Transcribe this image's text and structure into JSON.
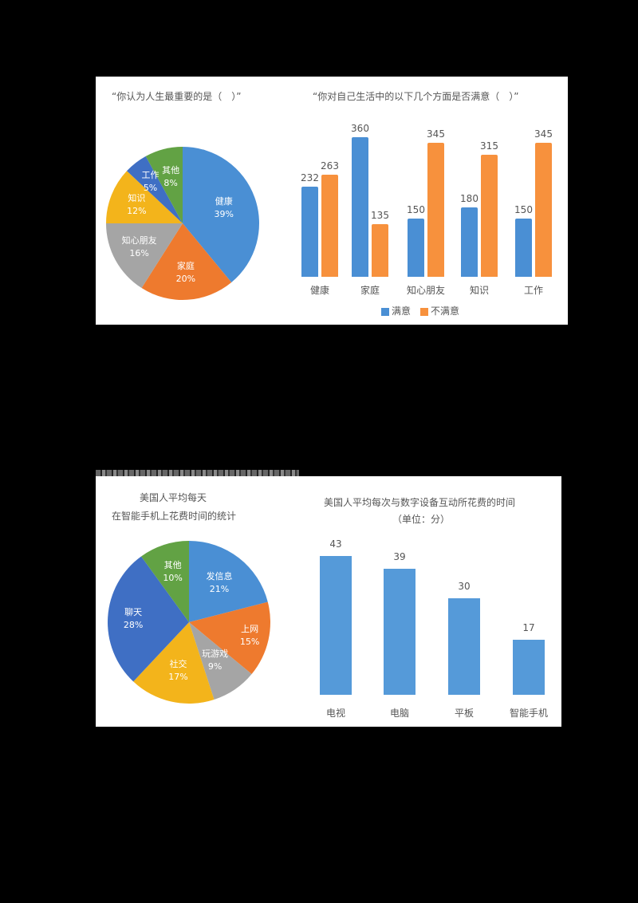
{
  "chart_data": [
    {
      "type": "pie",
      "title": "“你认为人生最重要的是（　）”",
      "categories": [
        "健康",
        "家庭",
        "知心朋友",
        "知识",
        "工作",
        "其他"
      ],
      "values": [
        39,
        20,
        16,
        12,
        5,
        8
      ],
      "labels": [
        "39%",
        "20%",
        "16%",
        "12%",
        "5%",
        "8%"
      ],
      "colors": [
        "#4a8fd4",
        "#ee7a2e",
        "#a5a5a5",
        "#f3b41b",
        "#3f6fc4",
        "#62a244"
      ],
      "legend": "none (inline labels)"
    },
    {
      "type": "bar",
      "title": "“你对自己生活中的以下几个方面是否满意（　）”",
      "categories": [
        "健康",
        "家庭",
        "知心朋友",
        "知识",
        "工作"
      ],
      "series": [
        {
          "name": "满意",
          "values": [
            232,
            360,
            150,
            180,
            150
          ],
          "color": "#4a8fd4"
        },
        {
          "name": "不满意",
          "values": [
            263,
            135,
            345,
            315,
            345
          ],
          "color": "#f7913d"
        }
      ],
      "xlabel": "",
      "ylabel": "",
      "ylim": [
        0,
        400
      ],
      "grid": false,
      "legend_position": "bottom"
    },
    {
      "type": "pie",
      "title": "美国人平均每天在智能手机上花费时间的统计",
      "title_lines": [
        "美国人平均每天",
        "在智能手机上花费时间的统计"
      ],
      "categories": [
        "发信息",
        "上网",
        "玩游戏",
        "社交",
        "聊天",
        "其他"
      ],
      "values": [
        21,
        15,
        9,
        17,
        28,
        10
      ],
      "labels": [
        "21%",
        "15%",
        "9%",
        "17%",
        "28%",
        "10%"
      ],
      "colors": [
        "#4a8fd4",
        "#ee7a2e",
        "#a5a5a5",
        "#f3b41b",
        "#3f6fc4",
        "#62a244"
      ],
      "legend": "none (inline labels)"
    },
    {
      "type": "bar",
      "title": "美国人平均每次与数字设备互动所花费的时间",
      "subtitle": "（单位：分）",
      "categories": [
        "电视",
        "电脑",
        "平板",
        "智能手机"
      ],
      "values": [
        43,
        39,
        30,
        17
      ],
      "color": "#559ad9",
      "xlabel": "",
      "ylabel": "分",
      "ylim": [
        0,
        50
      ],
      "grid": false
    }
  ]
}
